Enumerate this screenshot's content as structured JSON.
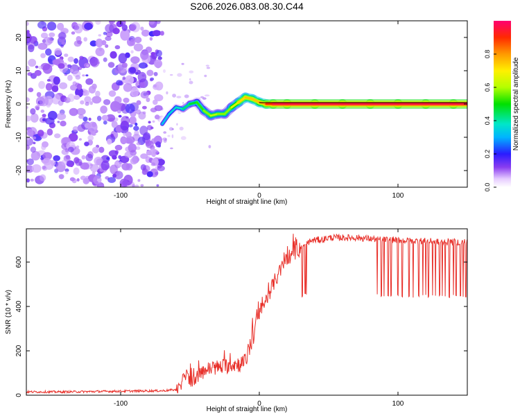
{
  "title": "S206.2026.083.08.30.C44",
  "chart_data": [
    {
      "type": "heatmap",
      "title": "S206.2026.083.08.30.C44",
      "xlabel": "Height of straight line (km)",
      "ylabel": "Frequency (Hz)",
      "xlim": [
        -168,
        150
      ],
      "ylim": [
        -25,
        25
      ],
      "x_ticks": [
        -100,
        0,
        100
      ],
      "y_ticks": [
        -20,
        -10,
        0,
        10,
        20
      ],
      "colorbar": {
        "label": "Normalized spectral amplitude",
        "range": [
          0,
          1
        ],
        "ticks": [
          0.0,
          0.2,
          0.4,
          0.6,
          0.8
        ],
        "tick_labels": [
          "0.0",
          "0.2",
          "0.4",
          "0.6",
          "0.8"
        ]
      },
      "noise_region_x": [
        -168,
        -70
      ],
      "signal_track": {
        "x": [
          -70,
          -65,
          -60,
          -55,
          -50,
          -45,
          -40,
          -35,
          -30,
          -25,
          -20,
          -15,
          -10,
          -5,
          0,
          5,
          10,
          20,
          40,
          60,
          80,
          100,
          120,
          140,
          150
        ],
        "y": [
          -6,
          -3,
          -1,
          -1.5,
          0,
          0.5,
          -2,
          -3.5,
          -3,
          -3,
          -1,
          0.5,
          2,
          1.5,
          0.5,
          0,
          0,
          0,
          0,
          0,
          0,
          0,
          0,
          0,
          0
        ],
        "amplitude": [
          0.3,
          0.35,
          0.35,
          0.4,
          0.45,
          0.5,
          0.55,
          0.6,
          0.6,
          0.55,
          0.6,
          0.7,
          0.75,
          0.75,
          0.75,
          0.85,
          0.95,
          0.95,
          0.95,
          0.95,
          0.95,
          0.95,
          0.95,
          0.95,
          0.95
        ]
      }
    },
    {
      "type": "line",
      "xlabel": "Height of straight line (km)",
      "ylabel": "SNR (10 * v/v)",
      "xlim": [
        -168,
        150
      ],
      "ylim": [
        0,
        750
      ],
      "x_ticks": [
        -100,
        0,
        100
      ],
      "y_ticks": [
        0,
        200,
        400,
        600
      ],
      "series": [
        {
          "name": "SNR",
          "color": "#e8302a",
          "x": [
            -168,
            -140,
            -100,
            -70,
            -60,
            -56,
            -54,
            -50,
            -45,
            -40,
            -35,
            -30,
            -25,
            -20,
            -15,
            -10,
            -8,
            -5,
            0,
            5,
            10,
            15,
            20,
            25,
            30,
            35,
            40,
            45,
            50,
            60,
            70,
            80,
            90,
            100,
            110,
            120,
            130,
            140,
            150
          ],
          "values": [
            15,
            15,
            18,
            20,
            25,
            40,
            110,
            60,
            80,
            110,
            120,
            125,
            130,
            140,
            140,
            150,
            200,
            260,
            370,
            430,
            500,
            560,
            620,
            640,
            660,
            690,
            700,
            700,
            710,
            710,
            710,
            705,
            700,
            700,
            695,
            695,
            690,
            690,
            690
          ]
        }
      ],
      "dropouts": {
        "x": [
          31,
          33,
          34,
          85,
          88,
          90,
          93,
          95,
          100,
          103,
          108,
          111,
          115,
          118,
          120,
          122,
          125,
          127,
          130,
          132,
          134,
          137,
          140,
          142,
          145,
          147,
          149
        ],
        "values": [
          440,
          450,
          445,
          445,
          440,
          445,
          440,
          445,
          445,
          440,
          440,
          440,
          445,
          445,
          445,
          440,
          445,
          440,
          445,
          440,
          445,
          440,
          445,
          440,
          440,
          440,
          440
        ]
      }
    }
  ]
}
